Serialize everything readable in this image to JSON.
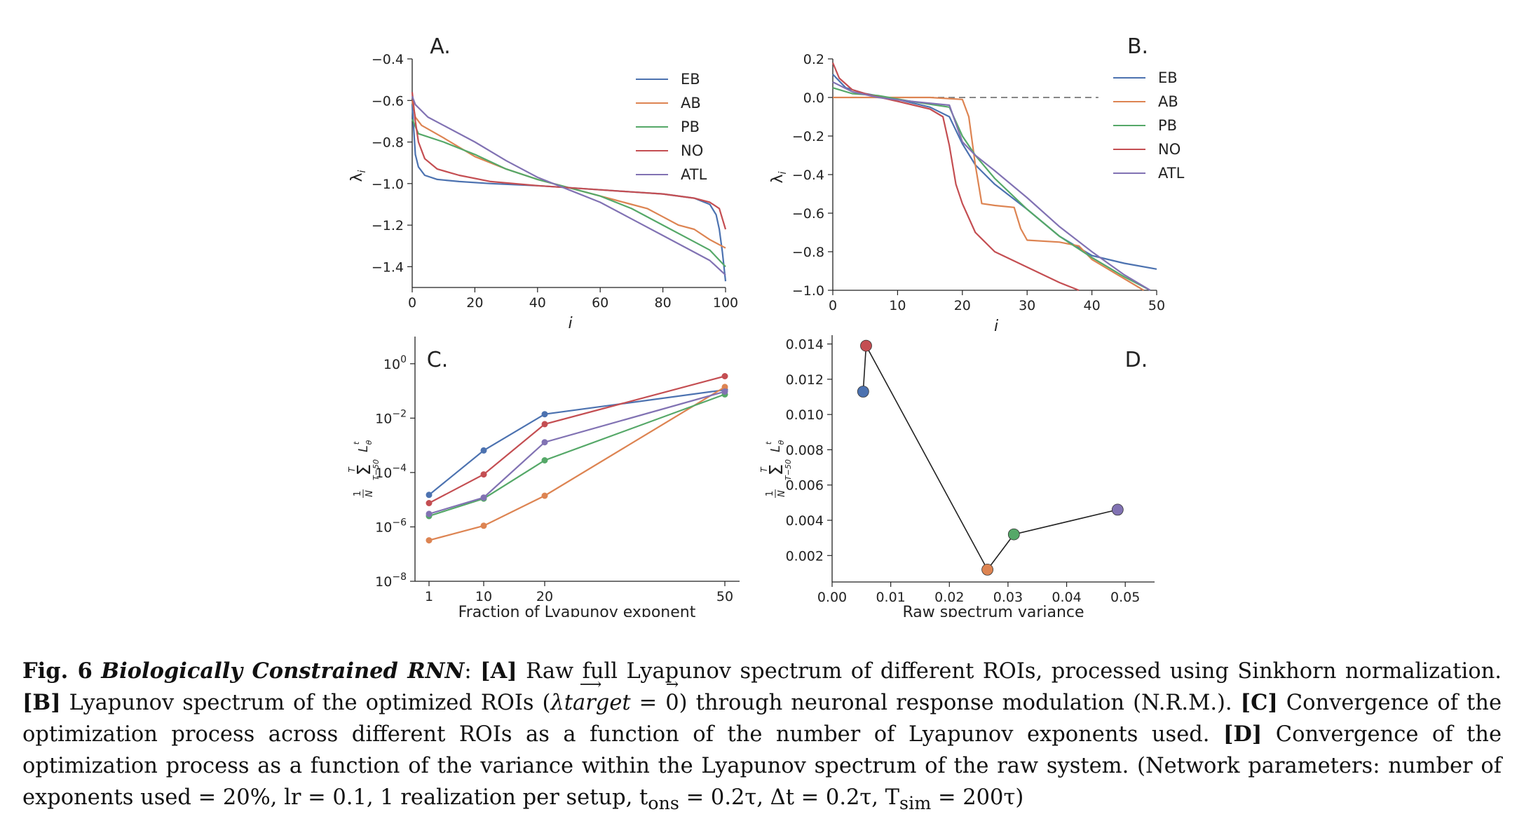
{
  "colors": {
    "EB": "#4c72b0",
    "AB": "#dd8452",
    "PB": "#55a868",
    "NO": "#c44e52",
    "ATL": "#8172b3",
    "dashed": "#888888",
    "connector": "#222222"
  },
  "panels": {
    "A": {
      "label": "A.",
      "xlabel": "i",
      "ylabel": "λi"
    },
    "B": {
      "label": "B.",
      "xlabel": "i",
      "ylabel": "λi"
    },
    "C": {
      "label": "C.",
      "xlabel": "Fraction of Lyapunov exponent",
      "ylabel": "(1/N) Σ_{τ−50}^{τ} L_θ^t"
    },
    "D": {
      "label": "D.",
      "xlabel": "Raw spectrum variance",
      "ylabel": "(1/N) Σ_{τ−50}^{τ} L_θ^t"
    }
  },
  "legend": [
    "EB",
    "AB",
    "PB",
    "NO",
    "ATL"
  ],
  "chart_data": [
    {
      "panel": "A",
      "type": "line",
      "xlabel": "i",
      "ylabel": "λi",
      "xlim": [
        0,
        100
      ],
      "ylim": [
        -1.5,
        -0.4
      ],
      "xticks": [
        0,
        20,
        40,
        60,
        80,
        100
      ],
      "yticks": [
        -0.4,
        -0.6,
        -0.8,
        -1.0,
        -1.2,
        -1.4
      ],
      "series": [
        {
          "name": "EB",
          "x": [
            0,
            1,
            2,
            4,
            8,
            15,
            25,
            40,
            50,
            60,
            70,
            80,
            90,
            95,
            97,
            98,
            99,
            100
          ],
          "y": [
            -0.62,
            -0.86,
            -0.92,
            -0.96,
            -0.98,
            -0.99,
            -1.0,
            -1.01,
            -1.02,
            -1.03,
            -1.04,
            -1.05,
            -1.07,
            -1.1,
            -1.15,
            -1.22,
            -1.33,
            -1.47
          ]
        },
        {
          "name": "AB",
          "x": [
            0,
            1,
            3,
            10,
            20,
            30,
            40,
            50,
            60,
            65,
            70,
            75,
            80,
            85,
            90,
            95,
            100
          ],
          "y": [
            -0.6,
            -0.68,
            -0.72,
            -0.78,
            -0.87,
            -0.93,
            -0.98,
            -1.02,
            -1.06,
            -1.08,
            -1.1,
            -1.12,
            -1.16,
            -1.2,
            -1.22,
            -1.27,
            -1.31
          ]
        },
        {
          "name": "PB",
          "x": [
            0,
            2,
            10,
            20,
            30,
            40,
            50,
            60,
            70,
            80,
            90,
            95,
            100
          ],
          "y": [
            -0.69,
            -0.76,
            -0.8,
            -0.86,
            -0.93,
            -0.98,
            -1.02,
            -1.06,
            -1.12,
            -1.2,
            -1.28,
            -1.32,
            -1.4
          ]
        },
        {
          "name": "NO",
          "x": [
            0,
            1,
            2,
            4,
            8,
            15,
            25,
            40,
            50,
            60,
            70,
            80,
            90,
            95,
            98,
            100
          ],
          "y": [
            -0.56,
            -0.7,
            -0.8,
            -0.88,
            -0.93,
            -0.96,
            -0.99,
            -1.01,
            -1.02,
            -1.03,
            -1.04,
            -1.05,
            -1.07,
            -1.09,
            -1.12,
            -1.22
          ]
        },
        {
          "name": "ATL",
          "x": [
            0,
            1,
            5,
            10,
            20,
            30,
            40,
            50,
            60,
            70,
            80,
            90,
            95,
            100
          ],
          "y": [
            -0.58,
            -0.62,
            -0.68,
            -0.72,
            -0.8,
            -0.89,
            -0.97,
            -1.03,
            -1.09,
            -1.17,
            -1.25,
            -1.33,
            -1.37,
            -1.44
          ]
        }
      ],
      "reference_lines": []
    },
    {
      "panel": "B",
      "type": "line",
      "xlabel": "i",
      "ylabel": "λi",
      "xlim": [
        0,
        50
      ],
      "ylim": [
        -1.0,
        0.2
      ],
      "xticks": [
        0,
        10,
        20,
        30,
        40,
        50
      ],
      "yticks": [
        0.2,
        0.0,
        -0.2,
        -0.4,
        -0.6,
        -0.8,
        -1.0
      ],
      "series": [
        {
          "name": "EB",
          "x": [
            0,
            2,
            5,
            10,
            15,
            18,
            20,
            22,
            25,
            30,
            35,
            40,
            45,
            50
          ],
          "y": [
            0.12,
            0.05,
            0.02,
            -0.01,
            -0.05,
            -0.1,
            -0.24,
            -0.35,
            -0.45,
            -0.58,
            -0.72,
            -0.82,
            -0.86,
            -0.89
          ]
        },
        {
          "name": "AB",
          "x": [
            0,
            5,
            10,
            15,
            20,
            21,
            22,
            23,
            25,
            28,
            29,
            30,
            35,
            38,
            40,
            45,
            48
          ],
          "y": [
            0.0,
            0.0,
            0.0,
            0.0,
            -0.01,
            -0.1,
            -0.35,
            -0.55,
            -0.56,
            -0.57,
            -0.68,
            -0.74,
            -0.75,
            -0.77,
            -0.84,
            -0.94,
            -1.0
          ]
        },
        {
          "name": "PB",
          "x": [
            0,
            3,
            7,
            12,
            18,
            20,
            22,
            25,
            30,
            35,
            40,
            45,
            49
          ],
          "y": [
            0.05,
            0.02,
            0.01,
            -0.02,
            -0.05,
            -0.2,
            -0.3,
            -0.42,
            -0.58,
            -0.72,
            -0.83,
            -0.93,
            -1.0
          ]
        },
        {
          "name": "NO",
          "x": [
            0,
            1,
            3,
            6,
            10,
            15,
            17,
            18,
            19,
            20,
            22,
            25,
            30,
            35,
            38
          ],
          "y": [
            0.18,
            0.1,
            0.04,
            0.01,
            -0.02,
            -0.06,
            -0.1,
            -0.25,
            -0.45,
            -0.55,
            -0.7,
            -0.8,
            -0.88,
            -0.96,
            -1.0
          ]
        },
        {
          "name": "ATL",
          "x": [
            0,
            3,
            7,
            12,
            18,
            20,
            22,
            25,
            30,
            35,
            40,
            45,
            49
          ],
          "y": [
            0.08,
            0.03,
            0.0,
            -0.02,
            -0.04,
            -0.23,
            -0.3,
            -0.38,
            -0.52,
            -0.67,
            -0.8,
            -0.92,
            -1.0
          ]
        }
      ],
      "reference_lines": [
        {
          "x": [
            0,
            41
          ],
          "y": [
            0,
            0
          ]
        }
      ]
    },
    {
      "panel": "C",
      "type": "line",
      "xlabel": "Fraction of Lyapunov exponent",
      "ylabel": "(1/N) Σ_{τ−50}^{τ} L_θ^t",
      "xscale": "categorical",
      "categories": [
        "1",
        "10",
        "20",
        "50"
      ],
      "yscale": "log",
      "ylim": [
        1e-08,
        10
      ],
      "yticks": [
        "10^0",
        "10^-2",
        "10^-4",
        "10^-6",
        "10^-8"
      ],
      "series": [
        {
          "name": "EB",
          "values": [
            1.5e-05,
            0.00065,
            0.014,
            0.11
          ]
        },
        {
          "name": "AB",
          "values": [
            3.2e-07,
            1.1e-06,
            1.4e-05,
            0.14
          ]
        },
        {
          "name": "PB",
          "values": [
            2.5e-06,
            1.1e-05,
            0.00028,
            0.075
          ]
        },
        {
          "name": "NO",
          "values": [
            7.5e-06,
            8.5e-05,
            0.006,
            0.35
          ]
        },
        {
          "name": "ATL",
          "values": [
            3e-06,
            1.2e-05,
            0.0013,
            0.095
          ]
        }
      ]
    },
    {
      "panel": "D",
      "type": "scatter",
      "xlabel": "Raw spectrum variance",
      "ylabel": "(1/N) Σ_{τ−50}^{τ} L_θ^t",
      "xlim": [
        0.0,
        0.055
      ],
      "ylim": [
        0.0005,
        0.0145
      ],
      "xticks": [
        "0.00",
        "0.01",
        "0.02",
        "0.03",
        "0.04",
        "0.05"
      ],
      "yticks": [
        "0.014",
        "0.012",
        "0.010",
        "0.008",
        "0.006",
        "0.004",
        "0.002"
      ],
      "points": [
        {
          "name": "EB",
          "x": 0.0053,
          "y": 0.0113
        },
        {
          "name": "NO",
          "x": 0.0058,
          "y": 0.0139
        },
        {
          "name": "AB",
          "x": 0.0265,
          "y": 0.0012
        },
        {
          "name": "PB",
          "x": 0.031,
          "y": 0.0032
        },
        {
          "name": "ATL",
          "x": 0.0487,
          "y": 0.0046
        }
      ],
      "connector_order": [
        "EB",
        "NO",
        "AB",
        "PB",
        "ATL"
      ]
    }
  ],
  "caption": {
    "fig_label": "Fig.  6",
    "title": "Biologically Constrained RNN",
    "colon": ": ",
    "a_tag": "[A]",
    "a_text": " Raw full Lyapunov spectrum of different ROIs, processed using Sinkhorn normalization. ",
    "b_tag": "[B]",
    "b_text_1": " Lyapunov spectrum of the optimized ROIs (",
    "lambda_target": "λtarget",
    "equals": " = ",
    "zero_vec": "0",
    "b_text_2": ") through neuronal response modulation (N.R.M.). ",
    "c_tag": "[C]",
    "c_text": " Convergence of the optimization process across different ROIs as a function of the number of Lyapunov exponents used. ",
    "d_tag": "[D]",
    "d_text": " Convergence of the optimization process as a function of the variance within the Lyapunov spectrum of the raw system. (Network parameters: number of exponents used = 20%, lr = 0.1, 1 realization per setup, t",
    "t_ons_sub": "ons",
    "after_tons": " = 0.2τ, Δt = 0.2τ, T",
    "t_sim_sub": "sim",
    "tail": " = 200τ)"
  }
}
